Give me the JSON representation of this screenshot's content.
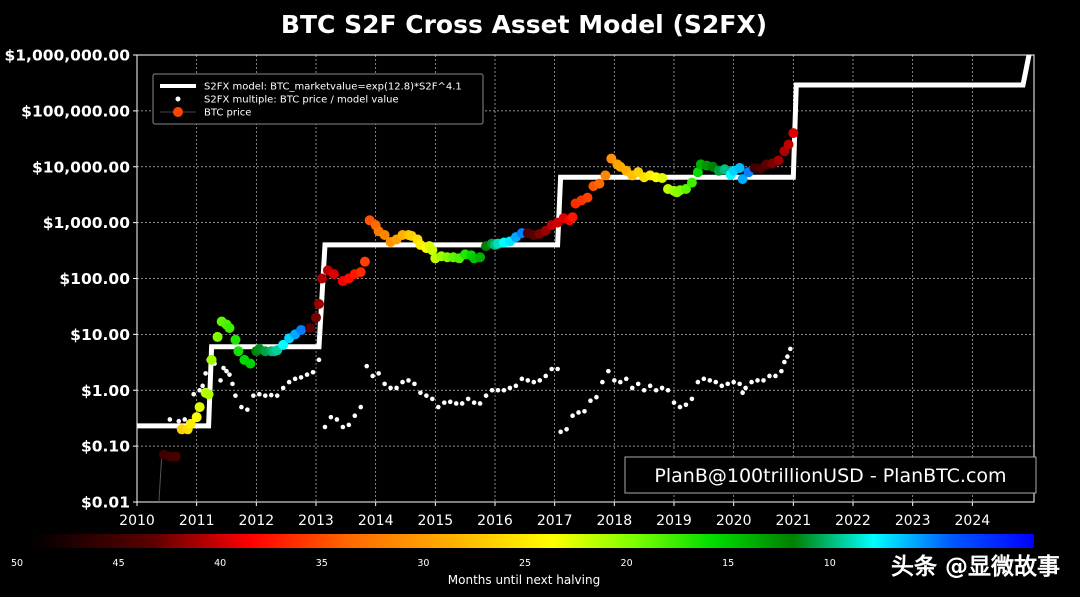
{
  "chart_data": {
    "type": "scatter",
    "title": "BTC S2F Cross Asset Model (S2FX)",
    "yscale": "log",
    "ylim": [
      0.01,
      1000000
    ],
    "xlim": [
      2010.0,
      2025.3
    ],
    "y_ticks": [
      {
        "value": 0.01,
        "label": "$0.01"
      },
      {
        "value": 0.1,
        "label": "$0.10"
      },
      {
        "value": 1,
        "label": "$1.00"
      },
      {
        "value": 10,
        "label": "$10.00"
      },
      {
        "value": 100,
        "label": "$100.00"
      },
      {
        "value": 1000,
        "label": "$1,000.00"
      },
      {
        "value": 10000,
        "label": "$10,000.00"
      },
      {
        "value": 100000,
        "label": "$100,000.00"
      },
      {
        "value": 1000000,
        "label": "$1,000,000.00"
      }
    ],
    "x_ticks": [
      "2010",
      "2011",
      "2012",
      "2013",
      "2014",
      "2015",
      "2016",
      "2017",
      "2018",
      "2019",
      "2020",
      "2021",
      "2022",
      "2023",
      "2024"
    ],
    "grid": true,
    "legend_position": "top-left",
    "legend": [
      "S2FX model: BTC_marketvalue=exp(12.8)*S2F^4.1",
      "S2FX multiple: BTC price / model value",
      "BTC price"
    ],
    "series": [
      {
        "name": "S2FX model: BTC_marketvalue=exp(12.8)*S2F^4.1",
        "kind": "step",
        "color": "#ffffff",
        "points": [
          [
            2010.0,
            0.23
          ],
          [
            2011.2,
            0.23
          ],
          [
            2011.25,
            6
          ],
          [
            2013.05,
            6
          ],
          [
            2013.15,
            400
          ],
          [
            2016.6,
            400
          ],
          [
            2017.05,
            400
          ],
          [
            2017.1,
            6500
          ],
          [
            2020.0,
            6500
          ],
          [
            2021.0,
            6500
          ],
          [
            2021.05,
            290000
          ],
          [
            2024.85,
            290000
          ],
          [
            2024.95,
            1000000
          ]
        ]
      },
      {
        "name": "S2FX multiple: BTC price / model value",
        "kind": "points",
        "color": "#ffffff",
        "points": [
          [
            2010.55,
            0.3
          ],
          [
            2010.7,
            0.28
          ],
          [
            2010.8,
            0.3
          ],
          [
            2010.95,
            0.85
          ],
          [
            2011.05,
            1.0
          ],
          [
            2011.1,
            1.2
          ],
          [
            2011.15,
            2.0
          ],
          [
            2011.2,
            3.5
          ],
          [
            2011.3,
            3.0
          ],
          [
            2011.4,
            1.5
          ],
          [
            2011.45,
            2.5
          ],
          [
            2011.5,
            2.2
          ],
          [
            2011.55,
            1.9
          ],
          [
            2011.6,
            1.3
          ],
          [
            2011.65,
            0.8
          ],
          [
            2011.75,
            0.5
          ],
          [
            2011.85,
            0.45
          ],
          [
            2011.95,
            0.8
          ],
          [
            2012.05,
            0.85
          ],
          [
            2012.15,
            0.8
          ],
          [
            2012.25,
            0.82
          ],
          [
            2012.35,
            0.8
          ],
          [
            2012.45,
            1.1
          ],
          [
            2012.55,
            1.4
          ],
          [
            2012.65,
            1.6
          ],
          [
            2012.75,
            1.7
          ],
          [
            2012.85,
            1.9
          ],
          [
            2012.95,
            2.1
          ],
          [
            2013.05,
            3.5
          ],
          [
            2013.15,
            0.22
          ],
          [
            2013.25,
            0.33
          ],
          [
            2013.35,
            0.3
          ],
          [
            2013.45,
            0.22
          ],
          [
            2013.55,
            0.24
          ],
          [
            2013.65,
            0.35
          ],
          [
            2013.75,
            0.5
          ],
          [
            2013.85,
            2.7
          ],
          [
            2013.95,
            1.8
          ],
          [
            2014.05,
            2.0
          ],
          [
            2014.15,
            1.3
          ],
          [
            2014.25,
            1.1
          ],
          [
            2014.35,
            1.1
          ],
          [
            2014.45,
            1.4
          ],
          [
            2014.55,
            1.5
          ],
          [
            2014.65,
            1.3
          ],
          [
            2014.75,
            0.9
          ],
          [
            2014.85,
            0.8
          ],
          [
            2014.95,
            0.7
          ],
          [
            2015.05,
            0.5
          ],
          [
            2015.15,
            0.6
          ],
          [
            2015.25,
            0.62
          ],
          [
            2015.35,
            0.58
          ],
          [
            2015.45,
            0.58
          ],
          [
            2015.55,
            0.7
          ],
          [
            2015.65,
            0.6
          ],
          [
            2015.75,
            0.58
          ],
          [
            2015.85,
            0.8
          ],
          [
            2015.95,
            1.0
          ],
          [
            2016.05,
            1.0
          ],
          [
            2016.15,
            1.0
          ],
          [
            2016.25,
            1.1
          ],
          [
            2016.35,
            1.2
          ],
          [
            2016.45,
            1.6
          ],
          [
            2016.55,
            1.5
          ],
          [
            2016.65,
            1.4
          ],
          [
            2016.75,
            1.5
          ],
          [
            2016.85,
            1.8
          ],
          [
            2016.95,
            2.4
          ],
          [
            2017.05,
            2.4
          ],
          [
            2017.1,
            0.18
          ],
          [
            2017.2,
            0.2
          ],
          [
            2017.3,
            0.35
          ],
          [
            2017.4,
            0.4
          ],
          [
            2017.5,
            0.42
          ],
          [
            2017.6,
            0.65
          ],
          [
            2017.7,
            0.75
          ],
          [
            2017.8,
            1.4
          ],
          [
            2017.9,
            2.2
          ],
          [
            2018.0,
            1.5
          ],
          [
            2018.1,
            1.4
          ],
          [
            2018.2,
            1.6
          ],
          [
            2018.3,
            1.1
          ],
          [
            2018.4,
            1.3
          ],
          [
            2018.5,
            1.0
          ],
          [
            2018.6,
            1.2
          ],
          [
            2018.7,
            1.0
          ],
          [
            2018.8,
            1.1
          ],
          [
            2018.9,
            1.0
          ],
          [
            2019.0,
            0.6
          ],
          [
            2019.1,
            0.5
          ],
          [
            2019.2,
            0.55
          ],
          [
            2019.3,
            0.7
          ],
          [
            2019.4,
            1.4
          ],
          [
            2019.5,
            1.6
          ],
          [
            2019.6,
            1.5
          ],
          [
            2019.7,
            1.4
          ],
          [
            2019.8,
            1.2
          ],
          [
            2019.9,
            1.3
          ],
          [
            2020.0,
            1.4
          ],
          [
            2020.1,
            1.3
          ],
          [
            2020.15,
            0.9
          ],
          [
            2020.2,
            1.1
          ],
          [
            2020.3,
            1.4
          ],
          [
            2020.4,
            1.5
          ],
          [
            2020.5,
            1.5
          ],
          [
            2020.6,
            1.8
          ],
          [
            2020.7,
            1.8
          ],
          [
            2020.8,
            2.2
          ],
          [
            2020.85,
            3.2
          ],
          [
            2020.9,
            4.0
          ],
          [
            2020.95,
            5.5
          ]
        ]
      },
      {
        "name": "BTC price",
        "kind": "points",
        "colored_by": "months_until_next_halving",
        "points": [
          [
            2010.45,
            0.07,
            46
          ],
          [
            2010.55,
            0.065,
            45.5
          ],
          [
            2010.65,
            0.065,
            45
          ],
          [
            2010.75,
            0.2,
            27
          ],
          [
            2010.85,
            0.2,
            26
          ],
          [
            2010.9,
            0.25,
            25
          ],
          [
            2011.0,
            0.33,
            24
          ],
          [
            2011.05,
            0.5,
            23
          ],
          [
            2011.15,
            0.9,
            22
          ],
          [
            2011.2,
            0.85,
            21.5
          ],
          [
            2011.25,
            3.5,
            21
          ],
          [
            2011.35,
            9,
            20
          ],
          [
            2011.42,
            17,
            19
          ],
          [
            2011.5,
            15,
            18.5
          ],
          [
            2011.55,
            13,
            18
          ],
          [
            2011.65,
            8,
            17
          ],
          [
            2011.7,
            5,
            16.5
          ],
          [
            2011.8,
            3.5,
            16
          ],
          [
            2011.9,
            3,
            15.5
          ],
          [
            2012.0,
            5,
            12
          ],
          [
            2012.05,
            5.5,
            11.5
          ],
          [
            2012.15,
            5,
            11
          ],
          [
            2012.25,
            5,
            10.5
          ],
          [
            2012.3,
            5,
            10
          ],
          [
            2012.35,
            5.2,
            9.5
          ],
          [
            2012.45,
            6.5,
            8
          ],
          [
            2012.55,
            8.5,
            7
          ],
          [
            2012.65,
            10,
            6
          ],
          [
            2012.75,
            12,
            5
          ],
          [
            2012.9,
            13,
            44
          ],
          [
            2013.0,
            20,
            43
          ],
          [
            2013.05,
            35,
            42
          ],
          [
            2013.1,
            100,
            41.5
          ],
          [
            2013.2,
            140,
            41
          ],
          [
            2013.3,
            120,
            40
          ],
          [
            2013.45,
            90,
            39
          ],
          [
            2013.55,
            100,
            38.5
          ],
          [
            2013.65,
            120,
            38
          ],
          [
            2013.75,
            130,
            37
          ],
          [
            2013.82,
            200,
            36
          ],
          [
            2013.9,
            1100,
            35
          ],
          [
            2014.0,
            900,
            34
          ],
          [
            2014.05,
            700,
            33
          ],
          [
            2014.15,
            600,
            32
          ],
          [
            2014.25,
            450,
            31
          ],
          [
            2014.35,
            500,
            30
          ],
          [
            2014.45,
            600,
            29
          ],
          [
            2014.55,
            600,
            28
          ],
          [
            2014.6,
            580,
            27
          ],
          [
            2014.7,
            500,
            26
          ],
          [
            2014.75,
            400,
            25
          ],
          [
            2014.85,
            350,
            24
          ],
          [
            2014.9,
            380,
            23
          ],
          [
            2014.95,
            320,
            22.5
          ],
          [
            2015.0,
            230,
            22
          ],
          [
            2015.1,
            250,
            21
          ],
          [
            2015.2,
            240,
            20
          ],
          [
            2015.3,
            240,
            19
          ],
          [
            2015.4,
            230,
            18.5
          ],
          [
            2015.5,
            270,
            17
          ],
          [
            2015.6,
            260,
            16
          ],
          [
            2015.65,
            230,
            15
          ],
          [
            2015.75,
            240,
            14
          ],
          [
            2015.85,
            380,
            12
          ],
          [
            2015.95,
            420,
            11
          ],
          [
            2016.0,
            400,
            10
          ],
          [
            2016.05,
            420,
            9
          ],
          [
            2016.15,
            440,
            8
          ],
          [
            2016.25,
            460,
            7.5
          ],
          [
            2016.35,
            550,
            6
          ],
          [
            2016.45,
            650,
            5
          ],
          [
            2016.55,
            650,
            45
          ],
          [
            2016.65,
            600,
            44
          ],
          [
            2016.75,
            630,
            43
          ],
          [
            2016.85,
            720,
            42
          ],
          [
            2016.95,
            900,
            41
          ],
          [
            2017.05,
            1000,
            40.5
          ],
          [
            2017.15,
            1200,
            40
          ],
          [
            2017.25,
            1100,
            39
          ],
          [
            2017.3,
            1250,
            38
          ],
          [
            2017.35,
            2200,
            37
          ],
          [
            2017.45,
            2500,
            36.5
          ],
          [
            2017.55,
            2800,
            36
          ],
          [
            2017.65,
            4500,
            35
          ],
          [
            2017.75,
            5000,
            34
          ],
          [
            2017.85,
            7000,
            32
          ],
          [
            2017.95,
            14000,
            31
          ],
          [
            2018.05,
            11000,
            30
          ],
          [
            2018.1,
            10000,
            29.5
          ],
          [
            2018.2,
            8500,
            29
          ],
          [
            2018.3,
            7000,
            28
          ],
          [
            2018.4,
            8000,
            27
          ],
          [
            2018.5,
            6500,
            26
          ],
          [
            2018.6,
            7000,
            25
          ],
          [
            2018.7,
            6500,
            24
          ],
          [
            2018.8,
            6300,
            23
          ],
          [
            2018.9,
            4000,
            22
          ],
          [
            2019.0,
            3700,
            21
          ],
          [
            2019.05,
            3500,
            20.5
          ],
          [
            2019.1,
            3800,
            20
          ],
          [
            2019.2,
            4000,
            19
          ],
          [
            2019.3,
            5200,
            18
          ],
          [
            2019.4,
            8000,
            16
          ],
          [
            2019.45,
            11000,
            14
          ],
          [
            2019.55,
            10500,
            13
          ],
          [
            2019.65,
            10000,
            12
          ],
          [
            2019.75,
            8500,
            11
          ],
          [
            2019.85,
            9000,
            10
          ],
          [
            2019.95,
            7200,
            8
          ],
          [
            2020.0,
            8500,
            7
          ],
          [
            2020.1,
            9500,
            6.5
          ],
          [
            2020.15,
            6000,
            6
          ],
          [
            2020.25,
            8000,
            5
          ],
          [
            2020.35,
            9500,
            46
          ],
          [
            2020.45,
            9300,
            45
          ],
          [
            2020.55,
            11000,
            44
          ],
          [
            2020.65,
            11500,
            43
          ],
          [
            2020.75,
            13000,
            42
          ],
          [
            2020.85,
            19000,
            41.5
          ],
          [
            2020.92,
            25000,
            41
          ],
          [
            2021.0,
            40000,
            40
          ]
        ]
      }
    ],
    "colorbar": {
      "label": "Months until next halving",
      "ticks": [
        "50",
        "45",
        "40",
        "35",
        "30",
        "25",
        "20",
        "15",
        "10"
      ],
      "range": [
        50,
        0
      ]
    },
    "annotations": {
      "credit": "PlanB@100trillionUSD  -  PlanBTC.com",
      "watermark": "头条 @显微故事"
    }
  }
}
